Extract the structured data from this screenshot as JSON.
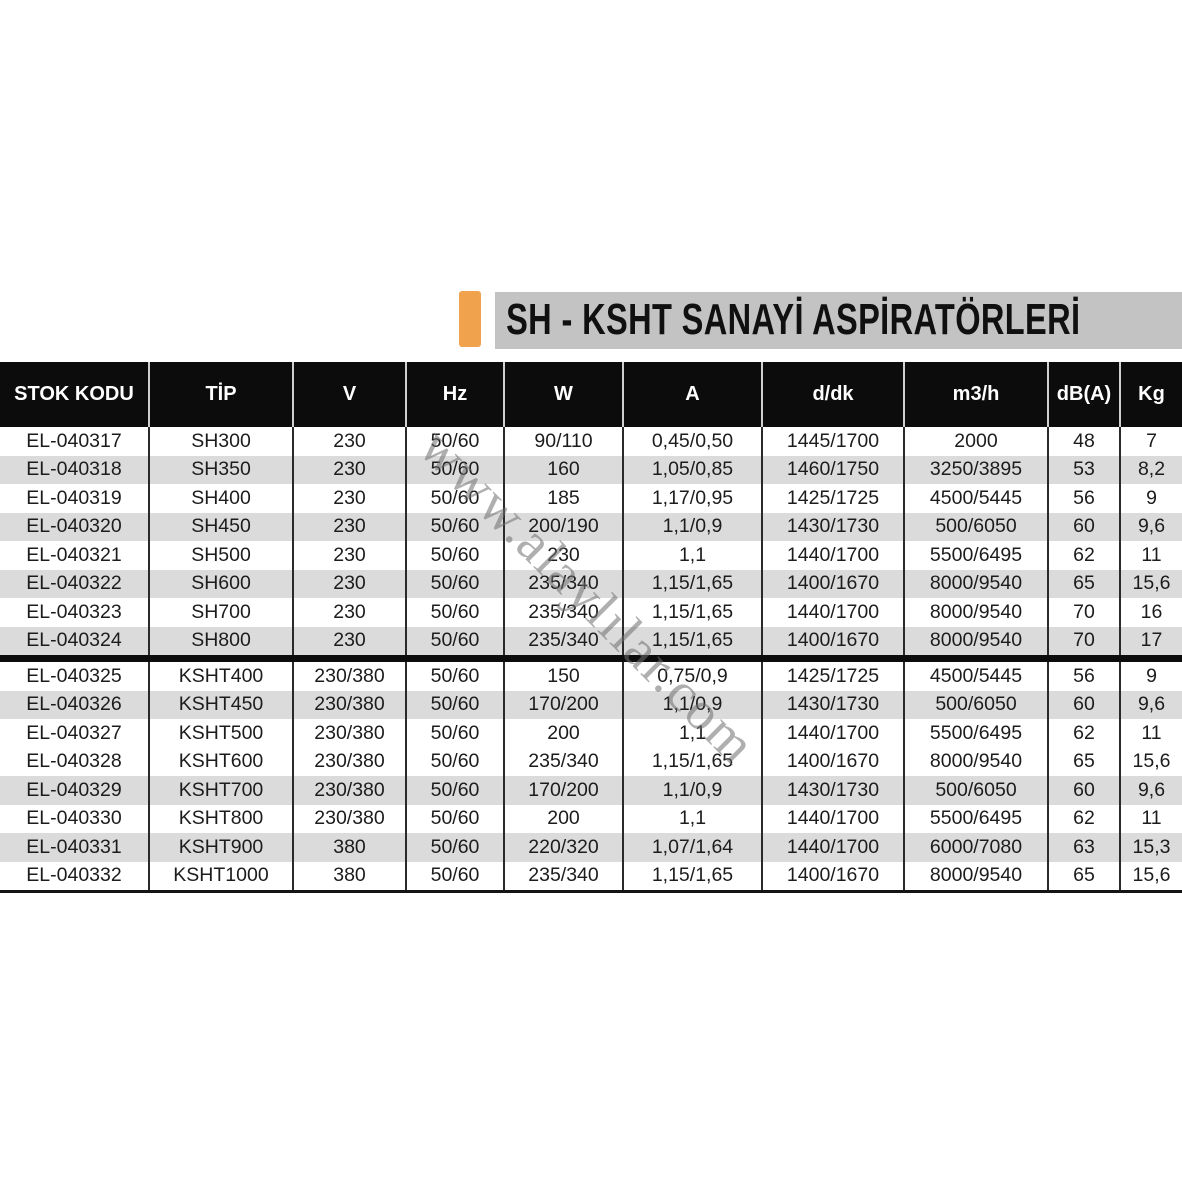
{
  "title": {
    "text": "SH - KSHT SANAYİ ASPİRATÖRLERİ"
  },
  "watermark": {
    "text": "www.alaylılar.com"
  },
  "colors": {
    "accent_orange": "#f0a24d",
    "title_bar_gray": "#c3c3c3",
    "header_black": "#0c0c0c",
    "zebra_gray": "#dbdbdb",
    "text_dark": "#1c1c1c"
  },
  "table": {
    "columns": [
      "STOK KODU",
      "TİP",
      "V",
      "Hz",
      "W",
      "A",
      "d/dk",
      "m3/h",
      "dB(A)",
      "Kg"
    ],
    "sections": [
      {
        "shaded_rows": [
          1,
          3,
          5,
          7
        ],
        "rows": [
          [
            "EL-040317",
            "SH300",
            "230",
            "50/60",
            "90/110",
            "0,45/0,50",
            "1445/1700",
            "2000",
            "48",
            "7"
          ],
          [
            "EL-040318",
            "SH350",
            "230",
            "50/60",
            "160",
            "1,05/0,85",
            "1460/1750",
            "3250/3895",
            "53",
            "8,2"
          ],
          [
            "EL-040319",
            "SH400",
            "230",
            "50/60",
            "185",
            "1,17/0,95",
            "1425/1725",
            "4500/5445",
            "56",
            "9"
          ],
          [
            "EL-040320",
            "SH450",
            "230",
            "50/60",
            "200/190",
            "1,1/0,9",
            "1430/1730",
            "500/6050",
            "60",
            "9,6"
          ],
          [
            "EL-040321",
            "SH500",
            "230",
            "50/60",
            "230",
            "1,1",
            "1440/1700",
            "5500/6495",
            "62",
            "11"
          ],
          [
            "EL-040322",
            "SH600",
            "230",
            "50/60",
            "235/340",
            "1,15/1,65",
            "1400/1670",
            "8000/9540",
            "65",
            "15,6"
          ],
          [
            "EL-040323",
            "SH700",
            "230",
            "50/60",
            "235/340",
            "1,15/1,65",
            "1440/1700",
            "8000/9540",
            "70",
            "16"
          ],
          [
            "EL-040324",
            "SH800",
            "230",
            "50/60",
            "235/340",
            "1,15/1,65",
            "1400/1670",
            "8000/9540",
            "70",
            "17"
          ]
        ]
      },
      {
        "shaded_rows": [
          1,
          4,
          6
        ],
        "rows": [
          [
            "EL-040325",
            "KSHT400",
            "230/380",
            "50/60",
            "150",
            "0,75/0,9",
            "1425/1725",
            "4500/5445",
            "56",
            "9"
          ],
          [
            "EL-040326",
            "KSHT450",
            "230/380",
            "50/60",
            "170/200",
            "1,1/0,9",
            "1430/1730",
            "500/6050",
            "60",
            "9,6"
          ],
          [
            "EL-040327",
            "KSHT500",
            "230/380",
            "50/60",
            "200",
            "1,1",
            "1440/1700",
            "5500/6495",
            "62",
            "11"
          ],
          [
            "EL-040328",
            "KSHT600",
            "230/380",
            "50/60",
            "235/340",
            "1,15/1,65",
            "1400/1670",
            "8000/9540",
            "65",
            "15,6"
          ],
          [
            "EL-040329",
            "KSHT700",
            "230/380",
            "50/60",
            "170/200",
            "1,1/0,9",
            "1430/1730",
            "500/6050",
            "60",
            "9,6"
          ],
          [
            "EL-040330",
            "KSHT800",
            "230/380",
            "50/60",
            "200",
            "1,1",
            "1440/1700",
            "5500/6495",
            "62",
            "11"
          ],
          [
            "EL-040331",
            "KSHT900",
            "380",
            "50/60",
            "220/320",
            "1,07/1,64",
            "1440/1700",
            "6000/7080",
            "63",
            "15,3"
          ],
          [
            "EL-040332",
            "KSHT1000",
            "380",
            "50/60",
            "235/340",
            "1,15/1,65",
            "1400/1670",
            "8000/9540",
            "65",
            "15,6"
          ]
        ]
      }
    ]
  }
}
